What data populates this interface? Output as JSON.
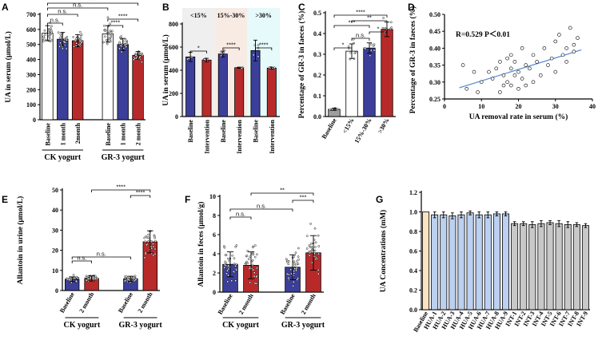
{
  "chart_data": [
    {
      "id": "A",
      "panel_label": "A",
      "type": "bar",
      "ylabel": "UA in serum (μmol/L)",
      "ylim": [
        0,
        700
      ],
      "yticks": [
        0,
        100,
        200,
        300,
        400,
        500,
        600,
        700
      ],
      "categories": [
        "Baseline",
        "1 month",
        "2month",
        "Baseline",
        "1 month",
        "2 month"
      ],
      "values": [
        575,
        535,
        525,
        570,
        500,
        428
      ],
      "errors": [
        50,
        45,
        40,
        55,
        40,
        25
      ],
      "colors": [
        "#ffffff",
        "#3b3f99",
        "#b82a2a",
        "#ffffff",
        "#3b3f99",
        "#b82a2a"
      ],
      "groups": [
        {
          "label": "CK yogurt",
          "from": 0,
          "to": 2
        },
        {
          "label": "GR-3 yogurt",
          "from": 3,
          "to": 5
        }
      ],
      "brackets": [
        {
          "a": 0,
          "b": 1,
          "label": "n.s."
        },
        {
          "a": 0,
          "b": 2,
          "label": "n.s."
        },
        {
          "a": 0,
          "b": 3,
          "label": "n.s."
        },
        {
          "a": 0,
          "b": 5,
          "label": "****"
        },
        {
          "a": 3,
          "b": 5,
          "label": "****"
        },
        {
          "a": 3,
          "b": 4,
          "label": "****"
        }
      ]
    },
    {
      "id": "B",
      "panel_label": "B",
      "type": "bar",
      "ylabel": "UA in serum (μmol/L)",
      "ylim": [
        0,
        800
      ],
      "yticks": [
        0,
        200,
        400,
        600,
        800
      ],
      "categories": [
        "Baseline",
        "Intervention",
        "Baseline",
        "Intervention",
        "Baseline",
        "Intervention"
      ],
      "values": [
        515,
        488,
        540,
        422,
        570,
        418
      ],
      "errors": [
        40,
        15,
        25,
        5,
        90,
        8
      ],
      "colors": [
        "#3b3f99",
        "#b82a2a",
        "#3b3f99",
        "#b82a2a",
        "#3b3f99",
        "#b82a2a"
      ],
      "bands": [
        {
          "label": "<15%",
          "color": "#efefef"
        },
        {
          "label": "15%-30%",
          "color": "#f7ebe4"
        },
        {
          "label": ">30%",
          "color": "#e6f9fb"
        }
      ],
      "brackets": [
        {
          "a": 0,
          "b": 1,
          "label": "*"
        },
        {
          "a": 2,
          "b": 3,
          "label": "****"
        },
        {
          "a": 4,
          "b": 5,
          "label": "****"
        }
      ]
    },
    {
      "id": "C",
      "panel_label": "C",
      "type": "bar",
      "ylabel": "Percentage of GR-3 in faeces (%)",
      "ylim": [
        0,
        0.5
      ],
      "yticks": [
        0.0,
        0.1,
        0.2,
        0.3,
        0.4,
        0.5
      ],
      "categories": [
        "Baseline",
        "<15%",
        "15%-30%",
        ">30%"
      ],
      "values": [
        0.035,
        0.315,
        0.33,
        0.42
      ],
      "errors": [
        0.005,
        0.035,
        0.025,
        0.035
      ],
      "colors": [
        "#9e9e9e",
        "#ffffff",
        "#3b3f99",
        "#b82a2a"
      ],
      "brackets": [
        {
          "a": 0,
          "b": 1,
          "label": "*"
        },
        {
          "a": 1,
          "b": 2,
          "label": "n.s."
        },
        {
          "a": 2,
          "b": 3,
          "label": "*"
        },
        {
          "a": 0,
          "b": 2,
          "label": "***"
        },
        {
          "a": 1,
          "b": 3,
          "label": "**"
        },
        {
          "a": 0,
          "b": 3,
          "label": "****"
        }
      ]
    },
    {
      "id": "D",
      "panel_label": "D",
      "type": "scatter",
      "xlabel": "UA removal rate in serum (%)",
      "ylabel": "Percentage of GR-3 in faeces (%)",
      "xlim": [
        0,
        40
      ],
      "ylim": [
        0.25,
        0.5
      ],
      "xticks": [
        0,
        10,
        20,
        30,
        40
      ],
      "yticks": [
        0.25,
        0.3,
        0.35,
        0.4,
        0.45,
        0.5
      ],
      "annotation": "R=0.529   P＜0.01",
      "fit": {
        "x": [
          4,
          37
        ],
        "y": [
          0.283,
          0.395
        ]
      },
      "x": [
        5,
        6,
        8,
        9,
        10,
        12,
        13,
        14,
        15,
        15,
        16,
        16,
        17,
        17,
        18,
        18,
        18,
        19,
        19,
        20,
        20,
        21,
        21,
        22,
        22,
        23,
        24,
        24,
        25,
        26,
        27,
        28,
        29,
        30,
        30,
        31,
        32,
        33,
        33,
        34,
        35,
        35,
        36
      ],
      "y": [
        0.35,
        0.28,
        0.33,
        0.27,
        0.3,
        0.33,
        0.31,
        0.34,
        0.36,
        0.27,
        0.29,
        0.32,
        0.37,
        0.3,
        0.34,
        0.29,
        0.38,
        0.32,
        0.36,
        0.28,
        0.33,
        0.31,
        0.4,
        0.35,
        0.29,
        0.34,
        0.3,
        0.38,
        0.36,
        0.32,
        0.4,
        0.35,
        0.37,
        0.42,
        0.33,
        0.44,
        0.38,
        0.4,
        0.36,
        0.46,
        0.41,
        0.39,
        0.43
      ]
    },
    {
      "id": "E",
      "panel_label": "E",
      "type": "bar",
      "ylabel": "Allantoin in urine (μmol/L)",
      "ylim": [
        0,
        50
      ],
      "yticks": [
        0,
        10,
        20,
        30,
        40,
        50
      ],
      "categories": [
        "Baseline",
        "2 month",
        "Baseline",
        "2 month"
      ],
      "values": [
        5.6,
        6.0,
        5.8,
        24.2
      ],
      "errors": [
        1.2,
        1.3,
        1.3,
        5.5
      ],
      "colors": [
        "#3b3f99",
        "#b82a2a",
        "#3b3f99",
        "#b82a2a"
      ],
      "groups": [
        {
          "label": "CK yogurt",
          "from": 0,
          "to": 1
        },
        {
          "label": "GR-3 yogurt",
          "from": 2,
          "to": 3
        }
      ],
      "brackets": [
        {
          "a": 0,
          "b": 1,
          "label": "n.s."
        },
        {
          "a": 0,
          "b": 2,
          "label": "n.s."
        },
        {
          "a": 2,
          "b": 3,
          "label": "****"
        },
        {
          "a": 1,
          "b": 3,
          "label": "****"
        }
      ]
    },
    {
      "id": "F",
      "panel_label": "F",
      "type": "bar",
      "ylabel": "Allantoin in feces (μmol/g)",
      "ylim": [
        0,
        10
      ],
      "yticks": [
        0,
        2,
        4,
        6,
        8,
        10
      ],
      "categories": [
        "Baseline",
        "2 month",
        "Baseline",
        "2 month"
      ],
      "values": [
        2.9,
        2.8,
        2.6,
        4.1
      ],
      "errors": [
        1.3,
        1.4,
        1.3,
        1.8
      ],
      "colors": [
        "#3b3f99",
        "#b82a2a",
        "#3b3f99",
        "#b82a2a"
      ],
      "groups": [
        {
          "label": "CK yogurt",
          "from": 0,
          "to": 1
        },
        {
          "label": "GR-3 yogurt",
          "from": 2,
          "to": 3
        }
      ],
      "brackets": [
        {
          "a": 0,
          "b": 1,
          "label": "n.s."
        },
        {
          "a": 0,
          "b": 2,
          "label": "n.s."
        },
        {
          "a": 2,
          "b": 3,
          "label": "***"
        },
        {
          "a": 1,
          "b": 3,
          "label": "**"
        }
      ]
    },
    {
      "id": "G",
      "panel_label": "G",
      "type": "bar",
      "ylabel": "UA Concentrations (mM)",
      "ylim": [
        0,
        1.2
      ],
      "yticks": [
        0.0,
        0.2,
        0.4,
        0.6,
        0.8,
        1.0,
        1.2
      ],
      "categories": [
        "Baseline",
        "HUA-1",
        "HUA-2",
        "HUA-3",
        "HUA-4",
        "HUA-5",
        "HUA-6",
        "HUA-7",
        "HUA-8",
        "HUA-9",
        "INT-1",
        "INT-2",
        "INT-3",
        "INT-4",
        "INT-5",
        "INT-6",
        "INT-7",
        "INT-8",
        "INT-9"
      ],
      "values": [
        1.0,
        0.97,
        0.97,
        0.96,
        0.97,
        0.99,
        0.97,
        0.97,
        0.98,
        0.98,
        0.88,
        0.88,
        0.87,
        0.88,
        0.89,
        0.88,
        0.87,
        0.87,
        0.86
      ],
      "errors": [
        0,
        0.03,
        0.03,
        0.03,
        0.03,
        0.02,
        0.03,
        0.03,
        0.02,
        0.02,
        0.02,
        0.02,
        0.03,
        0.03,
        0.02,
        0.03,
        0.03,
        0.02,
        0.02
      ],
      "colors": [
        "#fbe3c2",
        "#bcd0f0",
        "#bcd0f0",
        "#bcd0f0",
        "#bcd0f0",
        "#bcd0f0",
        "#bcd0f0",
        "#bcd0f0",
        "#bcd0f0",
        "#bcd0f0",
        "#c8c8c8",
        "#c8c8c8",
        "#c8c8c8",
        "#c8c8c8",
        "#c8c8c8",
        "#c8c8c8",
        "#c8c8c8",
        "#c8c8c8",
        "#c8c8c8"
      ]
    }
  ]
}
